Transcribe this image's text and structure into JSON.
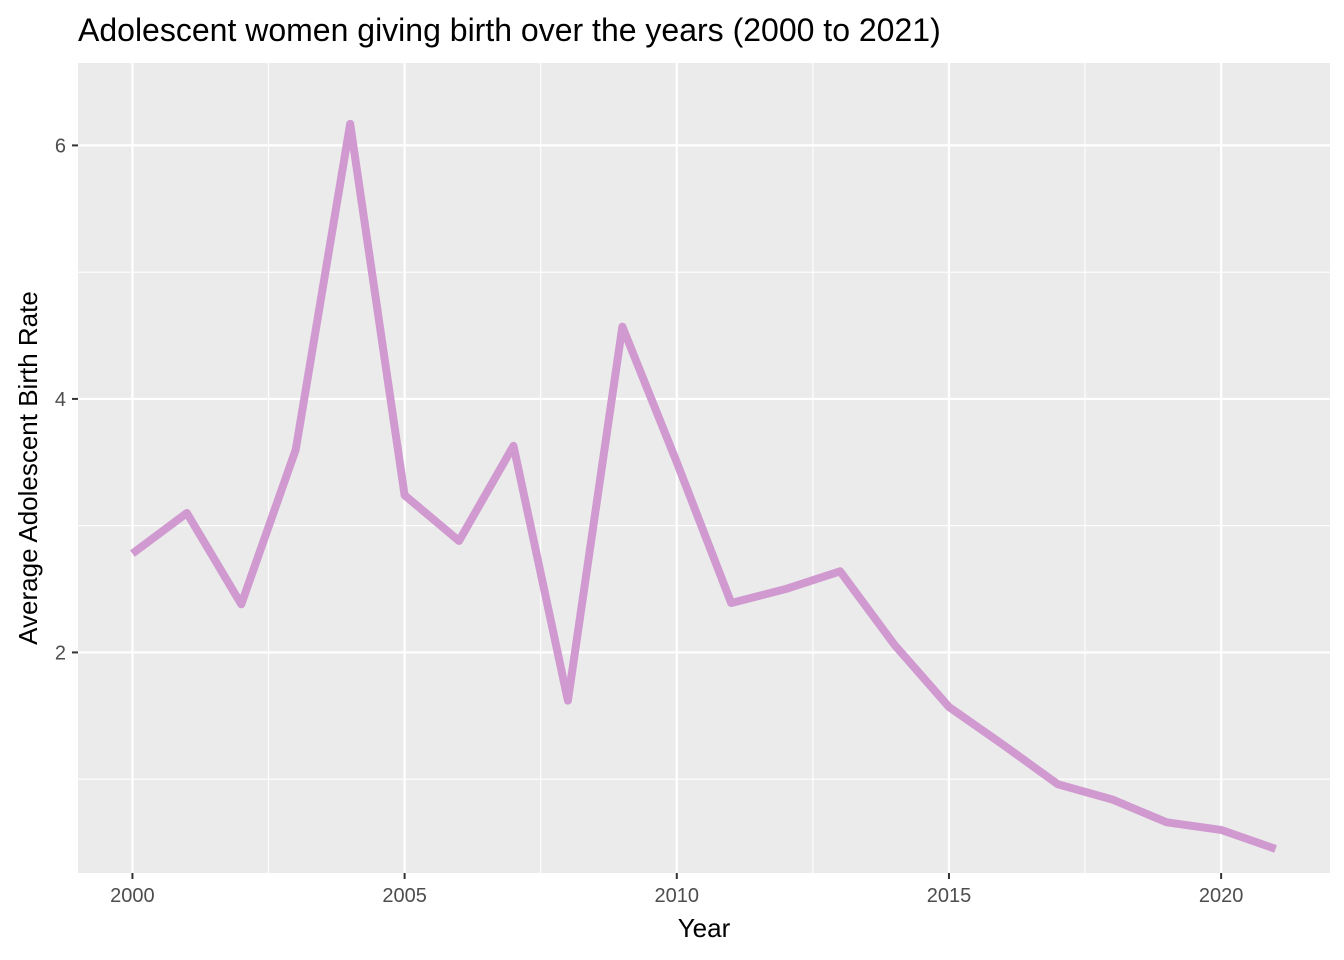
{
  "chart_data": {
    "type": "line",
    "title": "Adolescent women giving birth over the years (2000 to 2021)",
    "xlabel": "Year",
    "ylabel": "Average Adolescent Birth Rate",
    "x": [
      2000,
      2001,
      2002,
      2003,
      2004,
      2005,
      2006,
      2007,
      2008,
      2009,
      2010,
      2011,
      2012,
      2013,
      2014,
      2015,
      2016,
      2017,
      2018,
      2019,
      2020,
      2021
    ],
    "series": [
      {
        "values": [
          2.78,
          3.1,
          2.38,
          3.6,
          6.17,
          3.24,
          2.88,
          3.63,
          1.62,
          4.57,
          3.5,
          2.39,
          2.5,
          2.64,
          2.06,
          1.57,
          1.27,
          0.96,
          0.84,
          0.66,
          0.6,
          0.45
        ],
        "color": "#d09ad0"
      }
    ],
    "xlim": [
      1999,
      2022
    ],
    "ylim": [
      0.26,
      6.65
    ],
    "x_ticks": [
      2000,
      2005,
      2010,
      2015,
      2020
    ],
    "x_tick_labels": [
      "2000",
      "2005",
      "2010",
      "2015",
      "2020"
    ],
    "y_ticks": [
      2,
      4,
      6
    ],
    "y_tick_labels": [
      "2",
      "4",
      "6"
    ],
    "grid": true,
    "legend": "none",
    "panel_color": "#ebebeb"
  }
}
